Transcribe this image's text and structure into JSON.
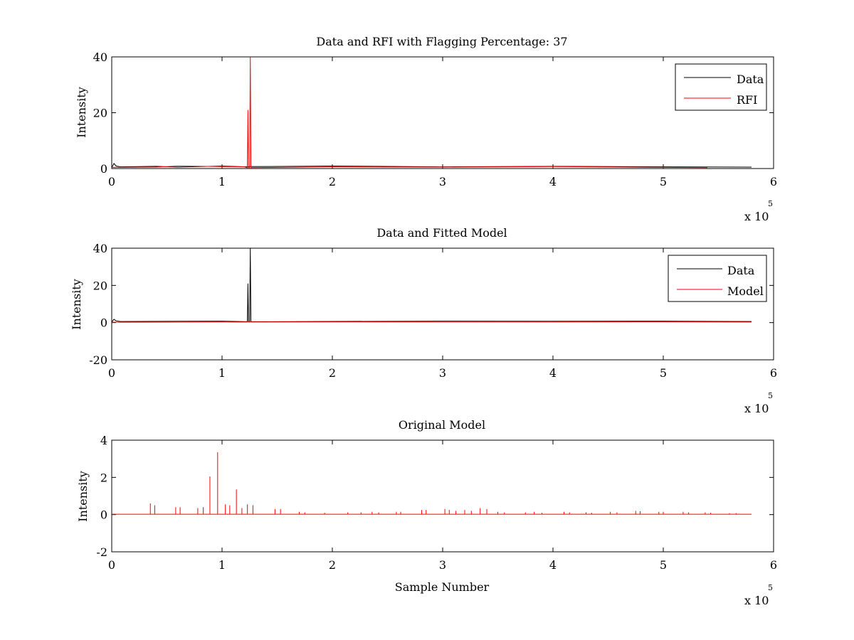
{
  "colors": {
    "data": "#000000",
    "rfi": "#ff0000",
    "axes": "#000000",
    "background": "#ffffff"
  },
  "chart_data": [
    {
      "type": "line",
      "title": "Data and RFI with Flagging Percentage: 37",
      "xlabel": "",
      "ylabel": "Intensity",
      "xlim": [
        0,
        600000
      ],
      "ylim": [
        0,
        40
      ],
      "x_ticks": [
        "0",
        "1",
        "2",
        "3",
        "4",
        "5",
        "6"
      ],
      "y_ticks": [
        "0",
        "20",
        "40"
      ],
      "x_exponent": {
        "base": "x 10",
        "power": "5"
      },
      "legend": {
        "position": "top-right",
        "entries": [
          "Data",
          "RFI"
        ]
      },
      "series": [
        {
          "name": "Data",
          "color": "#000000",
          "points": [
            [
              0,
              0.3
            ],
            [
              2000,
              1.8
            ],
            [
              4000,
              0.9
            ],
            [
              8000,
              0.6
            ],
            [
              40000,
              0.8
            ],
            [
              60000,
              0.5
            ],
            [
              100000,
              0.9
            ],
            [
              123000,
              0.6
            ],
            [
              125000,
              0.7
            ],
            [
              200000,
              0.9
            ],
            [
              300000,
              0.6
            ],
            [
              400000,
              0.8
            ],
            [
              500000,
              0.6
            ],
            [
              580000,
              0.5
            ]
          ]
        },
        {
          "name": "RFI",
          "color": "#ff0000",
          "points": [
            [
              0,
              0.4
            ],
            [
              40000,
              0.5
            ],
            [
              60000,
              0.9
            ],
            [
              120000,
              0.6
            ],
            [
              123000,
              0.3
            ],
            [
              123500,
              21
            ],
            [
              124000,
              0.3
            ],
            [
              125000,
              0.3
            ],
            [
              125600,
              40
            ],
            [
              126200,
              0.3
            ],
            [
              200000,
              0.6
            ],
            [
              300000,
              0.5
            ],
            [
              400000,
              0.7
            ],
            [
              500000,
              0.4
            ],
            [
              540000,
              0.3
            ]
          ]
        }
      ]
    },
    {
      "type": "line",
      "title": "Data and Fitted Model",
      "xlabel": "",
      "ylabel": "Intensity",
      "xlim": [
        0,
        600000
      ],
      "ylim": [
        -20,
        40
      ],
      "x_ticks": [
        "0",
        "1",
        "2",
        "3",
        "4",
        "5",
        "6"
      ],
      "y_ticks": [
        "-20",
        "0",
        "20",
        "40"
      ],
      "x_exponent": {
        "base": "x 10",
        "power": "5"
      },
      "legend": {
        "position": "top-right",
        "entries": [
          "Data",
          "Model"
        ]
      },
      "series": [
        {
          "name": "Data",
          "color": "#000000",
          "points": [
            [
              0,
              0.3
            ],
            [
              2000,
              1.8
            ],
            [
              4000,
              0.9
            ],
            [
              8000,
              0.6
            ],
            [
              100000,
              0.8
            ],
            [
              123000,
              0.5
            ],
            [
              123500,
              21
            ],
            [
              124000,
              0.5
            ],
            [
              125000,
              0.5
            ],
            [
              125600,
              40
            ],
            [
              126200,
              0.5
            ],
            [
              300000,
              0.8
            ],
            [
              400000,
              0.7
            ],
            [
              500000,
              0.8
            ],
            [
              580000,
              0.6
            ]
          ]
        },
        {
          "name": "Model",
          "color": "#ff0000",
          "points": [
            [
              0,
              0.2
            ],
            [
              100000,
              0.3
            ],
            [
              200000,
              0.4
            ],
            [
              300000,
              0.3
            ],
            [
              400000,
              0.3
            ],
            [
              500000,
              0.4
            ],
            [
              580000,
              0.3
            ]
          ]
        }
      ]
    },
    {
      "type": "line",
      "title": "Original Model",
      "xlabel": "Sample Number",
      "ylabel": "Intensity",
      "xlim": [
        0,
        600000
      ],
      "ylim": [
        -2,
        4
      ],
      "x_ticks": [
        "0",
        "1",
        "2",
        "3",
        "4",
        "5",
        "6"
      ],
      "y_ticks": [
        "-2",
        "0",
        "2",
        "4"
      ],
      "x_exponent": {
        "base": "x 10",
        "power": "5"
      },
      "legend": null,
      "baseline": 0.02,
      "series": [
        {
          "name": "",
          "color": "#ff0000",
          "spikes": [
            [
              35000,
              0.6
            ],
            [
              39000,
              0.5
            ],
            [
              58000,
              0.4
            ],
            [
              62000,
              0.4
            ],
            [
              78000,
              0.35
            ],
            [
              83000,
              0.4
            ],
            [
              89000,
              2.05
            ],
            [
              96000,
              3.35
            ],
            [
              103000,
              0.55
            ],
            [
              107000,
              0.5
            ],
            [
              113000,
              1.35
            ],
            [
              118000,
              0.35
            ],
            [
              123000,
              0.55
            ],
            [
              128000,
              0.5
            ],
            [
              148000,
              0.3
            ],
            [
              153000,
              0.3
            ],
            [
              170000,
              0.15
            ],
            [
              175000,
              0.12
            ],
            [
              193000,
              0.1
            ],
            [
              214000,
              0.12
            ],
            [
              226000,
              0.12
            ],
            [
              236000,
              0.15
            ],
            [
              242000,
              0.12
            ],
            [
              258000,
              0.15
            ],
            [
              262000,
              0.15
            ],
            [
              281000,
              0.25
            ],
            [
              285000,
              0.25
            ],
            [
              302000,
              0.3
            ],
            [
              306000,
              0.25
            ],
            [
              312000,
              0.2
            ],
            [
              320000,
              0.25
            ],
            [
              326000,
              0.2
            ],
            [
              334000,
              0.35
            ],
            [
              340000,
              0.3
            ],
            [
              350000,
              0.15
            ],
            [
              356000,
              0.12
            ],
            [
              375000,
              0.12
            ],
            [
              383000,
              0.15
            ],
            [
              390000,
              0.1
            ],
            [
              410000,
              0.15
            ],
            [
              415000,
              0.12
            ],
            [
              430000,
              0.12
            ],
            [
              435000,
              0.1
            ],
            [
              452000,
              0.15
            ],
            [
              458000,
              0.12
            ],
            [
              475000,
              0.2
            ],
            [
              479000,
              0.18
            ],
            [
              496000,
              0.15
            ],
            [
              500000,
              0.15
            ],
            [
              518000,
              0.15
            ],
            [
              523000,
              0.12
            ],
            [
              538000,
              0.12
            ],
            [
              543000,
              0.1
            ],
            [
              560000,
              0.08
            ],
            [
              566000,
              0.08
            ]
          ]
        }
      ]
    }
  ]
}
